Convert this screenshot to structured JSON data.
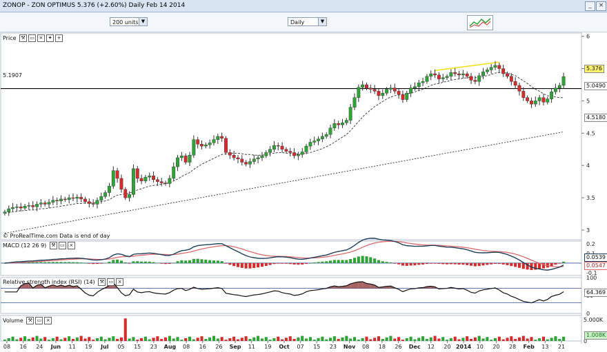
{
  "window": {
    "title": "ZONOP - ZON OPTIMUS    5.376 (+2.60%)    Daily  Feb 14 2014"
  },
  "toolbar": {
    "units_value": "200 units",
    "period_value": "Daily"
  },
  "price_panel": {
    "label": "Price",
    "credit": "© ProRealTime.com  Data is end of day",
    "hline_label": "5.1907",
    "y_ticks": [
      "6",
      "5.5",
      "5",
      "4.5",
      "4",
      "3.5",
      "3"
    ],
    "tags": {
      "last": "5.376",
      "ma_short": "5.0490",
      "ma_long": "4.5180"
    }
  },
  "macd_panel": {
    "label": "MACD (12 26 9)",
    "y_ticks": [
      "0.2",
      "0.1",
      "0",
      "-0.1"
    ],
    "tags": {
      "macd": "0.0539",
      "signal": "0.0547"
    }
  },
  "rsi_panel": {
    "label": "Relative strength index (RSI) (14)",
    "y_ticks": [
      "100",
      "50",
      "0"
    ],
    "tag": "64.369"
  },
  "volume_panel": {
    "label": "Volume",
    "y_ticks": [
      "5.000K",
      "0"
    ],
    "tag": "1.008K"
  },
  "x_axis": {
    "labels": [
      "08",
      "16",
      "24",
      "Jun",
      "11",
      "19",
      "Jul",
      "05",
      "15",
      "23",
      "Aug",
      "08",
      "16",
      "26",
      "Sep",
      "11",
      "19",
      "Oct",
      "07",
      "15",
      "23",
      "Nov",
      "08",
      "18",
      "26",
      "Dec",
      "12",
      "20",
      "2014",
      "10",
      "20",
      "28",
      "Feb",
      "13",
      "21"
    ]
  },
  "colors": {
    "up": "#2ea336",
    "down": "#d62b2b",
    "macd_line": "#1c3e5a",
    "signal_line": "#e06a6a",
    "trend": "#f5e31a",
    "rsi_fill": "#9a4a4a"
  },
  "chart_data": {
    "type": "candlestick",
    "x_axis_labels": [
      "08",
      "16",
      "24",
      "Jun",
      "11",
      "19",
      "Jul",
      "05",
      "15",
      "23",
      "Aug",
      "08",
      "16",
      "26",
      "Sep",
      "11",
      "19",
      "Oct",
      "07",
      "15",
      "23",
      "Nov",
      "08",
      "18",
      "26",
      "Dec",
      "12",
      "20",
      "2014",
      "10",
      "20",
      "28",
      "Feb",
      "13",
      "21"
    ],
    "y_range": [
      2.85,
      6.05
    ],
    "close": [
      3.28,
      3.33,
      3.35,
      3.36,
      3.34,
      3.37,
      3.38,
      3.36,
      3.4,
      3.42,
      3.4,
      3.43,
      3.46,
      3.45,
      3.48,
      3.47,
      3.5,
      3.49,
      3.51,
      3.48,
      3.44,
      3.41,
      3.4,
      3.46,
      3.52,
      3.58,
      3.68,
      3.92,
      3.8,
      3.63,
      3.5,
      3.55,
      3.95,
      3.8,
      3.76,
      3.82,
      3.84,
      3.78,
      3.75,
      3.73,
      3.72,
      3.8,
      3.98,
      4.12,
      4.15,
      4.05,
      4.16,
      4.4,
      4.33,
      4.3,
      4.32,
      4.35,
      4.4,
      4.45,
      4.42,
      4.2,
      4.16,
      4.12,
      4.1,
      4.05,
      4.02,
      4.06,
      4.1,
      4.12,
      4.15,
      4.2,
      4.25,
      4.31,
      4.3,
      4.25,
      4.22,
      4.2,
      4.15,
      4.17,
      4.21,
      4.3,
      4.36,
      4.38,
      4.41,
      4.45,
      4.48,
      4.58,
      4.65,
      4.63,
      4.66,
      4.7,
      4.9,
      5.05,
      5.21,
      5.25,
      5.2,
      5.18,
      5.15,
      5.08,
      5.12,
      5.18,
      5.2,
      5.15,
      5.1,
      5.02,
      5.12,
      5.2,
      5.22,
      5.28,
      5.3,
      5.38,
      5.42,
      5.4,
      5.34,
      5.36,
      5.38,
      5.44,
      5.42,
      5.4,
      5.42,
      5.38,
      5.32,
      5.3,
      5.39,
      5.45,
      5.48,
      5.52,
      5.55,
      5.5,
      5.42,
      5.38,
      5.3,
      5.24,
      5.15,
      5.05,
      5.0,
      4.95,
      5.0,
      5.05,
      4.98,
      5.03,
      5.14,
      5.2,
      5.24,
      5.376
    ],
    "ma_short": [
      3.26,
      3.27,
      3.28,
      3.29,
      3.3,
      3.3,
      3.31,
      3.31,
      3.32,
      3.33,
      3.33,
      3.34,
      3.35,
      3.36,
      3.37,
      3.38,
      3.39,
      3.4,
      3.41,
      3.41,
      3.42,
      3.42,
      3.42,
      3.43,
      3.44,
      3.45,
      3.47,
      3.51,
      3.54,
      3.55,
      3.56,
      3.57,
      3.6,
      3.62,
      3.64,
      3.66,
      3.68,
      3.69,
      3.7,
      3.71,
      3.72,
      3.73,
      3.76,
      3.79,
      3.83,
      3.86,
      3.89,
      3.94,
      3.98,
      4.02,
      4.05,
      4.08,
      4.11,
      4.14,
      4.17,
      4.18,
      4.19,
      4.19,
      4.19,
      4.18,
      4.17,
      4.17,
      4.16,
      4.16,
      4.16,
      4.17,
      4.18,
      4.19,
      4.2,
      4.2,
      4.19,
      4.19,
      4.18,
      4.18,
      4.18,
      4.19,
      4.2,
      4.22,
      4.24,
      4.26,
      4.29,
      4.32,
      4.36,
      4.4,
      4.44,
      4.48,
      4.54,
      4.61,
      4.68,
      4.75,
      4.81,
      4.86,
      4.91,
      4.95,
      4.99,
      5.03,
      5.06,
      5.08,
      5.09,
      5.1,
      5.11,
      5.12,
      5.14,
      5.16,
      5.18,
      5.21,
      5.24,
      5.26,
      5.27,
      5.29,
      5.3,
      5.32,
      5.33,
      5.34,
      5.35,
      5.36,
      5.36,
      5.36,
      5.37,
      5.38,
      5.39,
      5.41,
      5.43,
      5.44,
      5.44,
      5.43,
      5.41,
      5.39,
      5.35,
      5.31,
      5.27,
      5.22,
      5.18,
      5.15,
      5.11,
      5.08,
      5.07,
      5.06,
      5.05,
      5.05
    ],
    "ma_long_start": 2.95,
    "ma_long_end": 4.52,
    "hline": 5.1907,
    "macd": {
      "range": [
        -0.13,
        0.23
      ],
      "last_macd": 0.0539,
      "last_signal": 0.0547
    },
    "rsi": {
      "range": [
        0,
        100
      ],
      "levels": [
        70,
        30
      ],
      "last": 64.369
    },
    "volume": {
      "range": [
        0,
        6000
      ],
      "spike_index": 30,
      "spike_value": 5300,
      "last": 1008
    }
  }
}
